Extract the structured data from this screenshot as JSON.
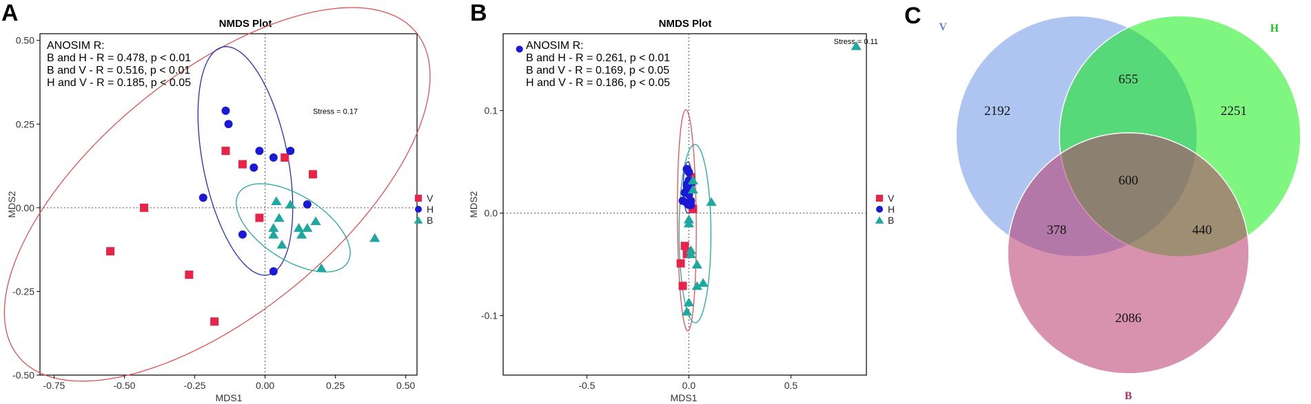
{
  "panels": {
    "A": "A",
    "B": "B",
    "C": "C"
  },
  "chart_data": [
    {
      "type": "scatter",
      "panel": "A",
      "title": "NMDS Plot",
      "xlabel": "MDS1",
      "ylabel": "MDS2",
      "xlim": [
        -0.8,
        0.54
      ],
      "ylim": [
        -0.5,
        0.52
      ],
      "xticks": [
        {
          "value": -0.75,
          "label": "-0.75"
        },
        {
          "value": -0.5,
          "label": "-0.50"
        },
        {
          "value": -0.25,
          "label": "-0.25"
        },
        {
          "value": 0.0,
          "label": "0.00"
        },
        {
          "value": 0.25,
          "label": "0.25"
        },
        {
          "value": 0.5,
          "label": "0.50"
        }
      ],
      "yticks": [
        {
          "value": 0.5,
          "label": "0.50"
        },
        {
          "value": 0.25,
          "label": "0.25"
        },
        {
          "value": 0.0,
          "label": "0.00"
        },
        {
          "value": -0.25,
          "label": "-0.25"
        },
        {
          "value": -0.5,
          "label": "-0.50"
        }
      ],
      "annotation_title": "ANOSIM R:",
      "annotations": [
        "B and H - R = 0.478, p < 0.01",
        "B and V - R = 0.516, p < 0.01",
        "H and V - R = 0.185, p < 0.05"
      ],
      "stress": "Stress = 0.17",
      "stress_pos": [
        0.17,
        0.28
      ],
      "legend": [
        {
          "name": "V",
          "marker": "square",
          "color": "#e8234a"
        },
        {
          "name": "H",
          "marker": "circle",
          "color": "#1a1ad6"
        },
        {
          "name": "B",
          "marker": "triangle",
          "color": "#1fa8a0"
        }
      ],
      "series": [
        {
          "name": "V",
          "marker": "square",
          "color": "#e8234a",
          "points": [
            [
              -0.43,
              0.0
            ],
            [
              -0.55,
              -0.13
            ],
            [
              -0.27,
              -0.2
            ],
            [
              -0.18,
              -0.34
            ],
            [
              -0.14,
              0.17
            ],
            [
              -0.08,
              0.13
            ],
            [
              0.07,
              0.15
            ],
            [
              0.17,
              0.1
            ],
            [
              -0.02,
              -0.03
            ]
          ]
        },
        {
          "name": "H",
          "marker": "circle",
          "color": "#1a1ad6",
          "points": [
            [
              -0.14,
              0.29
            ],
            [
              -0.13,
              0.25
            ],
            [
              -0.02,
              0.17
            ],
            [
              0.09,
              0.17
            ],
            [
              0.03,
              0.15
            ],
            [
              -0.04,
              0.12
            ],
            [
              -0.22,
              0.03
            ],
            [
              0.15,
              0.01
            ],
            [
              -0.08,
              -0.08
            ],
            [
              0.03,
              -0.19
            ]
          ]
        },
        {
          "name": "B",
          "marker": "triangle",
          "color": "#1fa8a0",
          "points": [
            [
              0.04,
              0.02
            ],
            [
              0.09,
              0.01
            ],
            [
              0.12,
              -0.06
            ],
            [
              0.15,
              -0.06
            ],
            [
              0.18,
              -0.04
            ],
            [
              0.05,
              -0.03
            ],
            [
              0.03,
              -0.06
            ],
            [
              0.03,
              -0.08
            ],
            [
              0.06,
              -0.11
            ],
            [
              0.13,
              -0.08
            ],
            [
              0.2,
              -0.18
            ],
            [
              0.39,
              -0.09
            ]
          ]
        }
      ],
      "ellipses": [
        {
          "group": "V",
          "color": "#e05050",
          "cx": -0.17,
          "cy": 0.04,
          "rx": 0.86,
          "ry": 0.38,
          "angle": 32
        },
        {
          "group": "H",
          "color": "#2a2ab8",
          "cx": -0.07,
          "cy": 0.14,
          "rx": 0.35,
          "ry": 0.15,
          "angle": 104
        },
        {
          "group": "B",
          "color": "#20a8a0",
          "cx": 0.1,
          "cy": -0.06,
          "rx": 0.22,
          "ry": 0.1,
          "angle": -26
        }
      ]
    },
    {
      "type": "scatter",
      "panel": "B",
      "title": "NMDS Plot",
      "xlabel": "MDS1",
      "ylabel": "MDS2",
      "xlim": [
        -0.91,
        0.87
      ],
      "ylim": [
        -0.158,
        0.175
      ],
      "xticks": [
        {
          "value": -0.5,
          "label": "-0.5"
        },
        {
          "value": 0.0,
          "label": "0.0"
        },
        {
          "value": 0.5,
          "label": "0.5"
        }
      ],
      "yticks": [
        {
          "value": 0.1,
          "label": "0.1"
        },
        {
          "value": 0.0,
          "label": "0.0"
        },
        {
          "value": -0.1,
          "label": "-0.1"
        }
      ],
      "annotation_title": "ANOSIM R:",
      "annotations": [
        "B and H - R = 0.261, p < 0.01",
        "B and V - R = 0.169, p < 0.05",
        "H and V - R = 0.186, p < 0.05"
      ],
      "stress": "Stress = 0.11",
      "stress_pos": [
        0.71,
        0.165
      ],
      "stray_marker": {
        "marker": "triangle",
        "color": "#1fa8a0",
        "point": [
          0.82,
          0.163
        ]
      },
      "title_marker": {
        "marker": "circle",
        "color": "#1a1ad6",
        "point": [
          -0.83,
          0.16
        ]
      },
      "legend": [
        {
          "name": "V",
          "marker": "square",
          "color": "#e8234a"
        },
        {
          "name": "H",
          "marker": "circle",
          "color": "#1a1ad6"
        },
        {
          "name": "B",
          "marker": "triangle",
          "color": "#1fa8a0"
        }
      ],
      "series": [
        {
          "name": "V",
          "marker": "square",
          "color": "#e8234a",
          "points": [
            [
              0.01,
              0.035
            ],
            [
              0.02,
              0.004
            ],
            [
              -0.02,
              -0.032
            ],
            [
              -0.01,
              -0.04
            ],
            [
              -0.04,
              -0.049
            ],
            [
              -0.03,
              -0.071
            ]
          ]
        },
        {
          "name": "H",
          "marker": "circle",
          "color": "#1a1ad6",
          "points": [
            [
              -0.01,
              0.043
            ],
            [
              0.0,
              0.032
            ],
            [
              0.01,
              0.028
            ],
            [
              -0.01,
              0.022
            ],
            [
              0.0,
              0.018
            ],
            [
              0.01,
              0.012
            ],
            [
              -0.03,
              0.012
            ],
            [
              0.0,
              0.008
            ],
            [
              -0.01,
              0.01
            ],
            [
              0.01,
              0.008
            ],
            [
              -0.02,
              0.02
            ],
            [
              0.0,
              0.04
            ],
            [
              -0.01,
              0.028
            ]
          ]
        },
        {
          "name": "B",
          "marker": "triangle",
          "color": "#1fa8a0",
          "points": [
            [
              0.02,
              0.032
            ],
            [
              0.11,
              0.011
            ],
            [
              0.0,
              -0.006
            ],
            [
              0.0,
              -0.01
            ],
            [
              0.01,
              -0.036
            ],
            [
              0.01,
              -0.04
            ],
            [
              0.04,
              -0.05
            ],
            [
              0.07,
              -0.068
            ],
            [
              0.04,
              -0.071
            ],
            [
              0.0,
              -0.087
            ],
            [
              -0.01,
              -0.096
            ],
            [
              0.02,
              0.023
            ]
          ]
        }
      ],
      "ellipses": [
        {
          "group": "V",
          "color": "#e05050",
          "cx": -0.01,
          "cy": -0.007,
          "rx": 0.046,
          "ry": 0.108,
          "angle": 3
        },
        {
          "group": "H",
          "color": "#2a2ab8",
          "cx": -0.005,
          "cy": 0.025,
          "rx": 0.022,
          "ry": 0.025,
          "angle": 0
        },
        {
          "group": "B",
          "color": "#20a8a0",
          "cx": 0.03,
          "cy": -0.02,
          "rx": 0.078,
          "ry": 0.087,
          "angle": 3
        }
      ]
    },
    {
      "type": "venn",
      "panel": "C",
      "sets": [
        {
          "name": "V",
          "color": "#6b96e8",
          "label_color": "#5a86d6"
        },
        {
          "name": "H",
          "color": "#00ee00",
          "label_color": "#20c020"
        },
        {
          "name": "B",
          "color": "#b8386a",
          "label_color": "#b03060"
        }
      ],
      "counts": {
        "V": 2192,
        "H": 2251,
        "B": 2086,
        "V&H": 655,
        "V&B": 378,
        "H&B": 440,
        "V&H&B": 600
      }
    }
  ]
}
